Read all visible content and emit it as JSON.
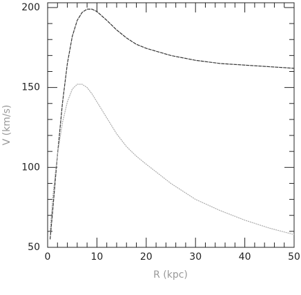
{
  "chart_data": {
    "type": "line",
    "xlabel": "R (kpc)",
    "ylabel": "V (km/s)",
    "x": [
      0.5,
      1,
      1.5,
      2,
      3,
      4,
      5,
      6,
      7,
      8,
      9,
      10,
      12,
      14,
      16,
      18,
      20,
      25,
      30,
      35,
      40,
      45,
      50
    ],
    "series": [
      {
        "color": "#333333",
        "values": [
          55,
          72,
          90,
          108,
          140,
          165,
          182,
          192,
          197,
          199,
          199,
          197.5,
          192,
          186,
          181,
          177,
          174.5,
          170,
          167,
          165,
          164,
          163,
          162
        ]
      },
      {
        "color": "#aaaaaa",
        "values": [
          60,
          80,
          95,
          108,
          128,
          141,
          149,
          152,
          152,
          150,
          146,
          141,
          131,
          121,
          113,
          107,
          102,
          90,
          80,
          73,
          67,
          62,
          58
        ]
      }
    ],
    "xlim": [
      0,
      50
    ],
    "ylim": [
      50,
      203
    ],
    "xticks": [
      0,
      10,
      20,
      30,
      40,
      50
    ],
    "yticks": [
      50,
      100,
      150,
      200
    ],
    "xminorticks": [
      2,
      4,
      6,
      8,
      12,
      14,
      16,
      18,
      22,
      24,
      26,
      28,
      32,
      34,
      36,
      38,
      42,
      44,
      46,
      48
    ],
    "yminorticks": [
      60,
      70,
      80,
      90,
      110,
      120,
      130,
      140,
      160,
      170,
      180,
      190
    ]
  }
}
